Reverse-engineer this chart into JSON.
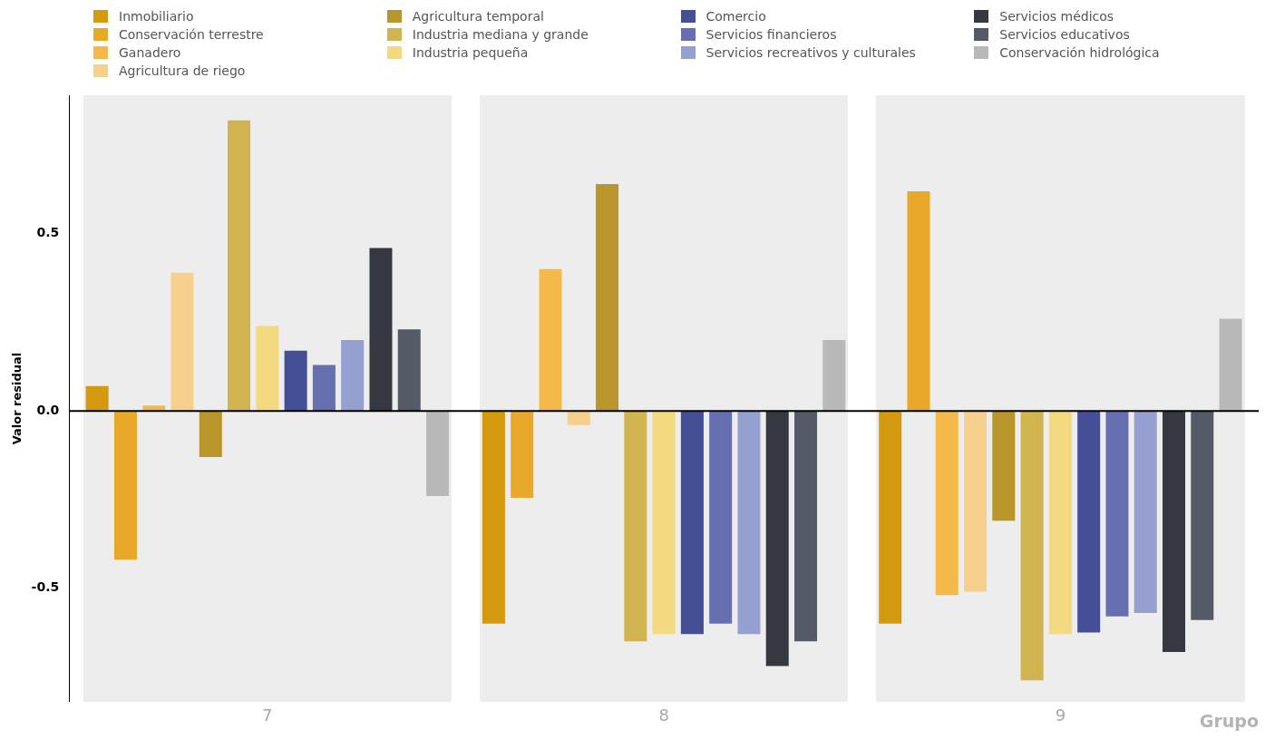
{
  "chart_data": {
    "type": "bar",
    "xlabel": "Grupo",
    "ylabel": "Valor residual",
    "categories": [
      "7",
      "8",
      "9"
    ],
    "series": [
      {
        "name": "Inmobiliario",
        "color": "#d4990f",
        "values": [
          0.07,
          -0.6,
          -0.6
        ]
      },
      {
        "name": "Conservación terrestre",
        "color": "#e8a92b",
        "values": [
          -0.42,
          -0.245,
          0.62
        ]
      },
      {
        "name": "Ganadero",
        "color": "#f5b94a",
        "values": [
          0.015,
          0.4,
          -0.52
        ]
      },
      {
        "name": "Agricultura de riego",
        "color": "#f8d08e",
        "values": [
          0.39,
          -0.04,
          -0.51
        ]
      },
      {
        "name": "Agricultura temporal",
        "color": "#b8962c",
        "values": [
          -0.13,
          0.64,
          -0.31
        ]
      },
      {
        "name": "Industria mediana y grande",
        "color": "#d1b350",
        "values": [
          0.82,
          -0.65,
          -0.76
        ]
      },
      {
        "name": "Industria pequeña",
        "color": "#f3da80",
        "values": [
          0.24,
          -0.63,
          -0.63
        ]
      },
      {
        "name": "Comercio",
        "color": "#454f96",
        "values": [
          0.17,
          -0.63,
          -0.625
        ]
      },
      {
        "name": "Servicios financieros",
        "color": "#6670b0",
        "values": [
          0.13,
          -0.6,
          -0.58
        ]
      },
      {
        "name": "Servicios recreativos y culturales",
        "color": "#96a0d0",
        "values": [
          0.2,
          -0.63,
          -0.57
        ]
      },
      {
        "name": "Servicios médicos",
        "color": "#353841",
        "values": [
          0.46,
          -0.72,
          -0.68
        ]
      },
      {
        "name": "Servicios educativos",
        "color": "#555a67",
        "values": [
          0.23,
          -0.65,
          -0.59
        ]
      },
      {
        "name": "Conservación hidrológica",
        "color": "#b9b9b9",
        "values": [
          -0.24,
          0.2,
          0.26
        ]
      }
    ],
    "ylim": [
      -0.82,
      0.89
    ],
    "yticks": [
      {
        "value": -0.5,
        "label": "-0.5"
      },
      {
        "value": 0,
        "label": "0.0"
      },
      {
        "value": 0.5,
        "label": "0.5"
      }
    ],
    "ref_lines": [
      {
        "axis": "y",
        "value": 0,
        "color": "#000000"
      }
    ],
    "grid": false,
    "legend": "top"
  }
}
